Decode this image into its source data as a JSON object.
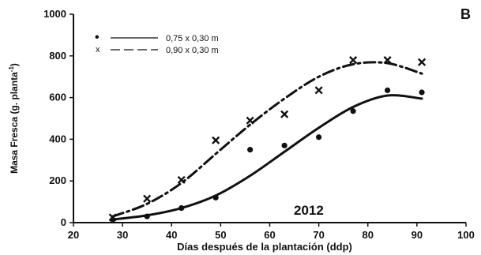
{
  "chart_data": {
    "type": "scatter",
    "panel_label": "B",
    "annotation": "2012",
    "xlabel": "Días después de la plantación (ddp)",
    "ylabel": "Masa Fresca (g. planta",
    "ylabel_superscript": "-1",
    "ylabel_close": ")",
    "xlim": [
      20,
      100
    ],
    "ylim": [
      0,
      1000
    ],
    "x_ticks": [
      20,
      30,
      40,
      50,
      60,
      70,
      80,
      90,
      100
    ],
    "y_ticks": [
      0,
      200,
      400,
      600,
      800,
      1000
    ],
    "legend_position": "top-left",
    "series": [
      {
        "name": "0,75 x 0,30 m",
        "marker": "dot",
        "marker_label": "•",
        "line_style": "solid",
        "x": [
          28,
          35,
          42,
          49,
          56,
          63,
          70,
          77,
          84,
          91
        ],
        "y": [
          15,
          30,
          70,
          120,
          350,
          370,
          410,
          535,
          635,
          625
        ],
        "fit_x": [
          28,
          35,
          42,
          49,
          56,
          63,
          70,
          77,
          84,
          91
        ],
        "fit_y": [
          15,
          35,
          70,
          130,
          225,
          340,
          455,
          555,
          610,
          595
        ]
      },
      {
        "name": "0,90 x 0,30 m",
        "marker": "cross",
        "marker_label": "x",
        "line_style": "dash-dot",
        "x": [
          28,
          35,
          42,
          49,
          56,
          63,
          70,
          77,
          84,
          91
        ],
        "y": [
          25,
          115,
          205,
          395,
          490,
          520,
          635,
          780,
          780,
          770
        ],
        "fit_x": [
          28,
          35,
          42,
          49,
          56,
          63,
          70,
          77,
          84,
          91
        ],
        "fit_y": [
          30,
          90,
          190,
          330,
          470,
          595,
          700,
          760,
          765,
          715
        ]
      }
    ]
  }
}
